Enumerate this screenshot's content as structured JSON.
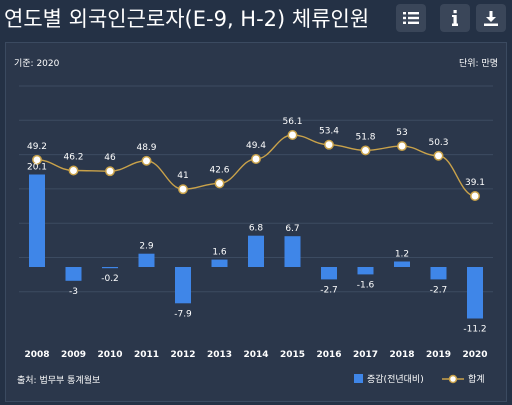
{
  "title": "연도별 외국인근로자(E-9, H-2) 체류인원",
  "toolbar": {
    "list_icon": "list-icon",
    "info_icon": "info-icon",
    "download_icon": "download-icon"
  },
  "unit_left": "기준: 2020",
  "unit_right": "단위: 만명",
  "source": "출처: 법무부 통계월보",
  "colors": {
    "bar": "#3f86e8",
    "line": "#c9a24a",
    "marker_fill": "#ffffff",
    "background": "#243145",
    "panel": "#2b374b"
  },
  "chart_data": {
    "type": "bar+line",
    "categories": [
      "2008",
      "2009",
      "2010",
      "2011",
      "2012",
      "2013",
      "2014",
      "2015",
      "2016",
      "2017",
      "2018",
      "2019",
      "2020"
    ],
    "series": [
      {
        "name": "증감(전년대비)",
        "type": "bar",
        "values": [
          20.1,
          -3,
          -0.2,
          2.9,
          -7.9,
          1.6,
          6.8,
          6.7,
          -2.7,
          -1.6,
          1.2,
          -2.7,
          -11.2
        ]
      },
      {
        "name": "합계",
        "type": "line",
        "values": [
          49.2,
          46.2,
          46,
          48.9,
          41,
          42.6,
          49.4,
          56.1,
          53.4,
          51.8,
          53,
          50.3,
          39.1
        ]
      }
    ],
    "grid": true,
    "legend": "bottom-right"
  }
}
